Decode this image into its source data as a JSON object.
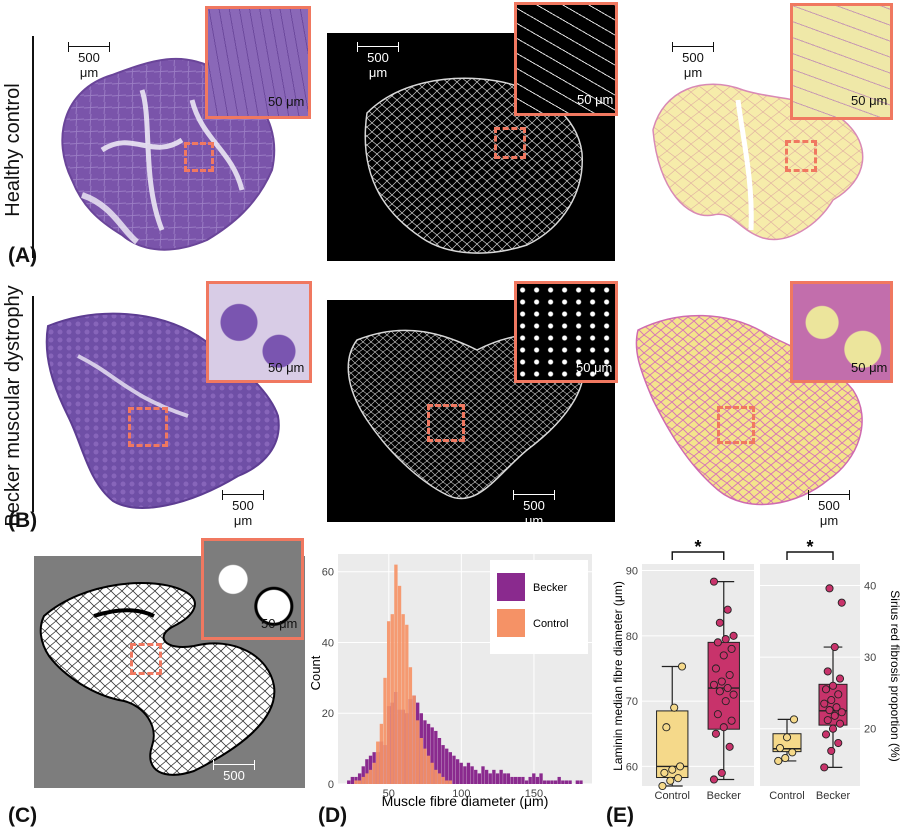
{
  "row_labels": {
    "top": "Healthy control",
    "bottom": "Becker muscular dystrophy"
  },
  "panel_labels": {
    "a": "(A)",
    "b": "(B)",
    "c": "(C)",
    "d": "(D)",
    "e": "(E)"
  },
  "scale_big": "500 μm",
  "scale_small": "50 μm",
  "chart_data": [
    {
      "type": "bar",
      "xlabel": "Muscle fibre diameter (μm)",
      "ylabel": "Count",
      "xlim": [
        15,
        190
      ],
      "ylim": [
        0,
        65
      ],
      "x_ticks": [
        "50",
        "100",
        "150"
      ],
      "y_ticks": [
        "0",
        "20",
        "40",
        "60"
      ],
      "legend_position": "top-right",
      "bin_width": 2.5,
      "series": [
        {
          "name": "Becker",
          "color": "#8a2a8e",
          "x": [
            20,
            22.5,
            25,
            27.5,
            30,
            32.5,
            35,
            37.5,
            40,
            42.5,
            45,
            47.5,
            50,
            52.5,
            55,
            57.5,
            60,
            62.5,
            65,
            67.5,
            70,
            72.5,
            75,
            77.5,
            80,
            82.5,
            85,
            87.5,
            90,
            92.5,
            95,
            97.5,
            100,
            102.5,
            105,
            107.5,
            110,
            112.5,
            115,
            117.5,
            120,
            122.5,
            125,
            127.5,
            130,
            132.5,
            135,
            137.5,
            140,
            142.5,
            145,
            147.5,
            150,
            152.5,
            155,
            157.5,
            160,
            162.5,
            165,
            167.5,
            170,
            172.5,
            175,
            177.5,
            180,
            182.5
          ],
          "values": [
            0,
            1,
            2,
            2,
            3,
            5,
            7,
            8,
            9,
            9,
            12,
            11,
            22,
            23,
            26,
            21,
            21,
            20,
            24,
            25,
            23,
            20,
            18,
            17,
            16,
            15,
            13,
            11,
            10,
            9,
            8,
            7,
            6,
            5,
            6,
            5,
            4,
            3,
            5,
            4,
            3,
            4,
            3,
            4,
            3,
            3,
            2,
            2,
            2,
            2,
            1,
            2,
            3,
            2,
            3,
            1,
            1,
            1,
            1,
            2,
            1,
            1,
            1,
            0,
            1,
            1
          ]
        },
        {
          "name": "Control",
          "color": "#f59266",
          "x": [
            27.5,
            30,
            32.5,
            35,
            37.5,
            40,
            42.5,
            45,
            47.5,
            50,
            52.5,
            55,
            57.5,
            60,
            62.5,
            65,
            67.5,
            70,
            72.5,
            75,
            77.5,
            80,
            82.5,
            85,
            87.5,
            90,
            92.5
          ],
          "values": [
            1,
            1,
            2,
            3,
            4,
            6,
            12,
            17,
            30,
            46,
            48,
            62,
            56,
            48,
            45,
            33,
            25,
            18,
            13,
            10,
            8,
            6,
            4,
            3,
            2,
            1,
            1
          ]
        }
      ]
    },
    {
      "type": "box",
      "ylabel": "Laminin median fibre diameter (μm)",
      "ylim": [
        57,
        91
      ],
      "y_ticks": [
        "60",
        "70",
        "80",
        "90"
      ],
      "categories": [
        "Control",
        "Becker"
      ],
      "colors": [
        "#f5d98a",
        "#c8336b"
      ],
      "significance": "*",
      "boxes": [
        {
          "min": 57,
          "q1": 58.3,
          "median": 60,
          "q3": 68.5,
          "max": 75.3
        },
        {
          "min": 58,
          "q1": 65.7,
          "median": 72,
          "q3": 79,
          "max": 88.3
        }
      ],
      "points": [
        [
          57,
          57.8,
          58.2,
          59,
          59.5,
          60,
          66,
          69,
          75.3
        ],
        [
          58,
          59,
          63,
          65,
          66,
          67,
          68,
          70,
          71,
          71.5,
          72,
          72.5,
          73,
          74,
          75,
          77,
          78,
          79,
          79.5,
          80,
          82,
          84,
          88.3
        ]
      ]
    },
    {
      "type": "box",
      "ylabel": "Sirius red fibrosis proportion (%)",
      "ylim": [
        12,
        43
      ],
      "y_ticks": [
        "20",
        "30",
        "40"
      ],
      "categories": [
        "Control",
        "Becker"
      ],
      "colors": [
        "#f5d98a",
        "#c8336b"
      ],
      "significance": "*",
      "boxes": [
        {
          "min": 15.5,
          "q1": 16.8,
          "median": 17.2,
          "q3": 19.3,
          "max": 21.3
        },
        {
          "min": 14.6,
          "q1": 20.5,
          "median": 22.5,
          "q3": 26.2,
          "max": 31.4
        }
      ],
      "points": [
        [
          15.5,
          15.9,
          16.7,
          17.3,
          18.8,
          21.3
        ],
        [
          14.6,
          16.9,
          18,
          19.2,
          20,
          20.7,
          21.2,
          21.8,
          22.3,
          22.6,
          23,
          23.5,
          24,
          24.8,
          25.5,
          26,
          27,
          28,
          31.4,
          37.6,
          39.6
        ]
      ]
    }
  ]
}
